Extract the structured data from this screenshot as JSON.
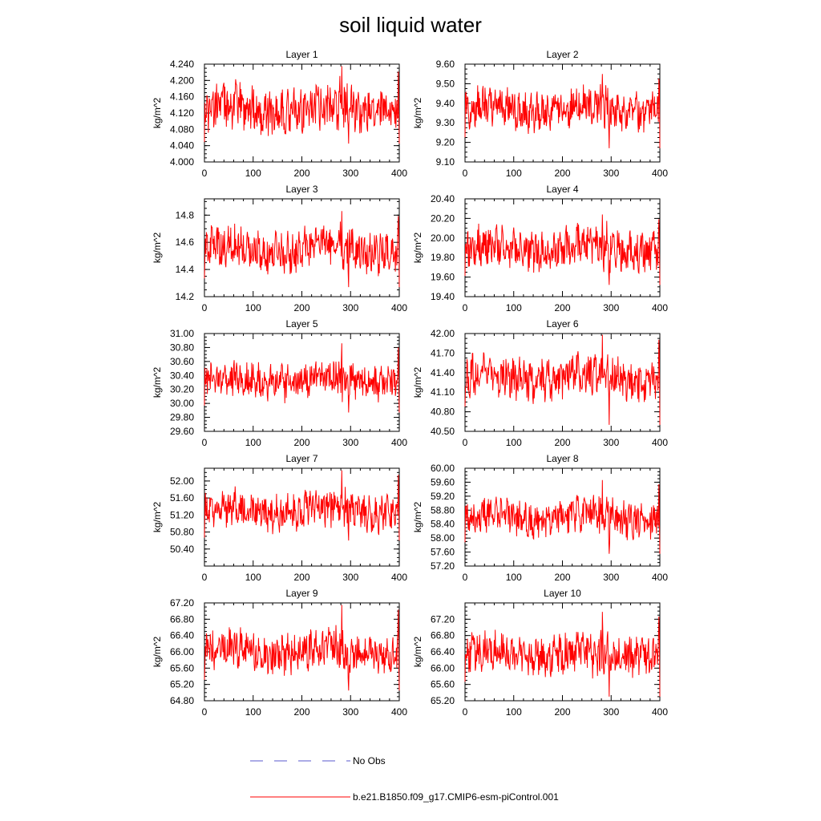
{
  "figure": {
    "title": "soil liquid water",
    "legend": [
      {
        "label": "No Obs",
        "color": "#5a5acd",
        "dash": true
      },
      {
        "label": "b.e21.B1850.f09_g17.CMIP6-esm-piControl.001",
        "color": "#ff0000",
        "dash": false
      }
    ]
  },
  "chart_data": [
    {
      "type": "line",
      "title": "Layer 1",
      "xlabel": "",
      "ylabel": "kg/m^2",
      "xlim": [
        0,
        400
      ],
      "ylim": [
        4.0,
        4.24
      ],
      "xticks": [
        "0",
        "100",
        "200",
        "300",
        "400"
      ],
      "yticks": [
        "4.000",
        "4.040",
        "4.080",
        "4.120",
        "4.160",
        "4.200",
        "4.240"
      ],
      "series": [
        {
          "color": "#ff0000",
          "base": 4.13,
          "amp": 0.045,
          "peaks": [
            4.235,
            4.045
          ]
        }
      ]
    },
    {
      "type": "line",
      "title": "Layer 2",
      "xlabel": "",
      "ylabel": "kg/m^2",
      "xlim": [
        0,
        400
      ],
      "ylim": [
        9.1,
        9.6
      ],
      "xticks": [
        "0",
        "100",
        "200",
        "300",
        "400"
      ],
      "yticks": [
        "9.10",
        "9.20",
        "9.30",
        "9.40",
        "9.50",
        "9.60"
      ],
      "series": [
        {
          "color": "#ff0000",
          "base": 9.37,
          "amp": 0.08,
          "peaks": [
            9.55,
            9.17
          ]
        }
      ]
    },
    {
      "type": "line",
      "title": "Layer 3",
      "xlabel": "",
      "ylabel": "kg/m^2",
      "xlim": [
        0,
        400
      ],
      "ylim": [
        14.2,
        14.92
      ],
      "xticks": [
        "0",
        "100",
        "200",
        "300",
        "400"
      ],
      "yticks": [
        "14.2",
        "14.4",
        "14.6",
        "14.8"
      ],
      "series": [
        {
          "color": "#ff0000",
          "base": 14.55,
          "amp": 0.12,
          "peaks": [
            14.83,
            14.27
          ]
        }
      ]
    },
    {
      "type": "line",
      "title": "Layer 4",
      "xlabel": "",
      "ylabel": "kg/m^2",
      "xlim": [
        0,
        400
      ],
      "ylim": [
        19.4,
        20.4
      ],
      "xticks": [
        "0",
        "100",
        "200",
        "300",
        "400"
      ],
      "yticks": [
        "19.40",
        "19.60",
        "19.80",
        "20.00",
        "20.20",
        "20.40"
      ],
      "series": [
        {
          "color": "#ff0000",
          "base": 19.9,
          "amp": 0.16,
          "peaks": [
            20.24,
            19.52
          ]
        }
      ]
    },
    {
      "type": "line",
      "title": "Layer 5",
      "xlabel": "",
      "ylabel": "kg/m^2",
      "xlim": [
        0,
        400
      ],
      "ylim": [
        29.6,
        31.0
      ],
      "xticks": [
        "0",
        "100",
        "200",
        "300",
        "400"
      ],
      "yticks": [
        "29.60",
        "29.80",
        "30.00",
        "30.20",
        "30.40",
        "30.60",
        "30.80",
        "31.00"
      ],
      "series": [
        {
          "color": "#ff0000",
          "base": 30.33,
          "amp": 0.2,
          "peaks": [
            30.86,
            29.87
          ]
        }
      ]
    },
    {
      "type": "line",
      "title": "Layer 6",
      "xlabel": "",
      "ylabel": "kg/m^2",
      "xlim": [
        0,
        400
      ],
      "ylim": [
        40.5,
        42.0
      ],
      "xticks": [
        "0",
        "100",
        "200",
        "300",
        "400"
      ],
      "yticks": [
        "40.50",
        "40.80",
        "41.10",
        "41.40",
        "41.70",
        "42.00"
      ],
      "series": [
        {
          "color": "#ff0000",
          "base": 41.33,
          "amp": 0.25,
          "peaks": [
            41.98,
            40.6
          ]
        }
      ]
    },
    {
      "type": "line",
      "title": "Layer 7",
      "xlabel": "",
      "ylabel": "kg/m^2",
      "xlim": [
        0,
        400
      ],
      "ylim": [
        50.0,
        52.3
      ],
      "xticks": [
        "0",
        "100",
        "200",
        "300",
        "400"
      ],
      "yticks": [
        "50.40",
        "50.80",
        "51.20",
        "51.60",
        "52.00"
      ],
      "series": [
        {
          "color": "#ff0000",
          "base": 51.3,
          "amp": 0.35,
          "peaks": [
            52.25,
            50.6
          ]
        }
      ]
    },
    {
      "type": "line",
      "title": "Layer 8",
      "xlabel": "",
      "ylabel": "kg/m^2",
      "xlim": [
        0,
        400
      ],
      "ylim": [
        57.2,
        60.0
      ],
      "xticks": [
        "0",
        "100",
        "200",
        "300",
        "400"
      ],
      "yticks": [
        "57.20",
        "57.60",
        "58.00",
        "58.40",
        "58.80",
        "59.20",
        "59.60",
        "60.00"
      ],
      "series": [
        {
          "color": "#ff0000",
          "base": 58.6,
          "amp": 0.4,
          "peaks": [
            59.66,
            57.55
          ]
        }
      ]
    },
    {
      "type": "line",
      "title": "Layer 9",
      "xlabel": "",
      "ylabel": "kg/m^2",
      "xlim": [
        0,
        400
      ],
      "ylim": [
        64.8,
        67.2
      ],
      "xticks": [
        "0",
        "100",
        "200",
        "300",
        "400"
      ],
      "yticks": [
        "64.80",
        "65.20",
        "65.60",
        "66.00",
        "66.40",
        "66.80",
        "67.20"
      ],
      "series": [
        {
          "color": "#ff0000",
          "base": 66.0,
          "amp": 0.38,
          "peaks": [
            67.15,
            65.05
          ]
        }
      ]
    },
    {
      "type": "line",
      "title": "Layer 10",
      "xlabel": "",
      "ylabel": "kg/m^2",
      "xlim": [
        0,
        400
      ],
      "ylim": [
        65.2,
        67.6
      ],
      "xticks": [
        "0",
        "100",
        "200",
        "300",
        "400"
      ],
      "yticks": [
        "65.20",
        "65.60",
        "66.00",
        "66.40",
        "66.80",
        "67.20"
      ],
      "series": [
        {
          "color": "#ff0000",
          "base": 66.35,
          "amp": 0.38,
          "peaks": [
            67.38,
            65.3
          ]
        }
      ]
    }
  ]
}
